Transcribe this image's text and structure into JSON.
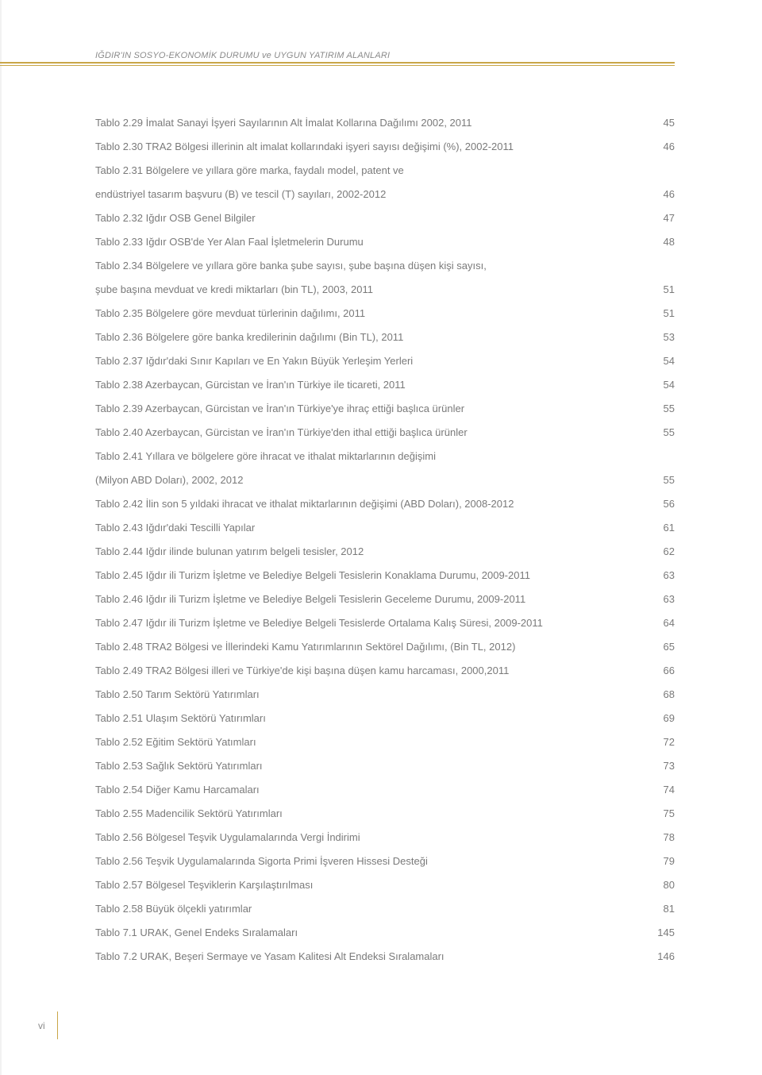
{
  "header": {
    "title": "IĞDIR'IN SOSYO-EKONOMİK DURUMU ve UYGUN YATIRIM ALANLARI"
  },
  "page_number": "vi",
  "colors": {
    "accent": "#c9a648",
    "text": "#7a7a7a",
    "header_text": "#8a8a8a",
    "background": "#ffffff"
  },
  "typography": {
    "body_fontsize": 13,
    "header_fontsize": 11,
    "line_height": 30
  },
  "toc": [
    {
      "label": "Tablo 2.29 İmalat Sanayi İşyeri Sayılarının Alt İmalat Kollarına Dağılımı 2002, 2011",
      "page": "45"
    },
    {
      "label": "Tablo 2.30 TRA2 Bölgesi illerinin alt imalat kollarındaki işyeri sayısı değişimi (%), 2002-2011",
      "page": "46"
    },
    {
      "label": "Tablo 2.31 Bölgelere ve yıllara göre marka, faydalı model, patent ve",
      "page": ""
    },
    {
      "label": "endüstriyel tasarım başvuru (B)  ve tescil (T) sayıları, 2002-2012",
      "page": "46"
    },
    {
      "label": "Tablo 2.32 Iğdır OSB Genel Bilgiler",
      "page": "47"
    },
    {
      "label": "Tablo 2.33 Iğdır OSB'de Yer Alan Faal İşletmelerin Durumu",
      "page": "48"
    },
    {
      "label": "Tablo 2.34 Bölgelere ve yıllara göre banka şube sayısı, şube başına düşen kişi sayısı,",
      "page": ""
    },
    {
      "label": "şube başına mevduat ve kredi miktarları (bin TL), 2003, 2011",
      "page": "51"
    },
    {
      "label": "Tablo 2.35 Bölgelere göre mevduat türlerinin dağılımı, 2011",
      "page": "51"
    },
    {
      "label": "Tablo 2.36 Bölgelere göre banka kredilerinin dağılımı (Bin TL), 2011",
      "page": "53"
    },
    {
      "label": "Tablo 2.37 Iğdır'daki Sınır Kapıları ve En Yakın Büyük Yerleşim Yerleri",
      "page": "54"
    },
    {
      "label": "Tablo 2.38 Azerbaycan, Gürcistan ve İran'ın Türkiye ile ticareti, 2011",
      "page": "54"
    },
    {
      "label": "Tablo 2.39 Azerbaycan, Gürcistan ve İran'ın Türkiye'ye ihraç ettiği başlıca ürünler",
      "page": "55"
    },
    {
      "label": "Tablo 2.40 Azerbaycan, Gürcistan ve İran'ın Türkiye'den ithal ettiği başlıca ürünler",
      "page": "55"
    },
    {
      "label": "Tablo 2.41 Yıllara ve bölgelere göre ihracat ve ithalat miktarlarının değişimi",
      "page": ""
    },
    {
      "label": "(Milyon ABD Doları), 2002, 2012",
      "page": "55"
    },
    {
      "label": "Tablo 2.42 İlin son 5 yıldaki ihracat ve ithalat miktarlarının değişimi (ABD Doları), 2008-2012",
      "page": "56"
    },
    {
      "label": "Tablo 2.43 Iğdır'daki Tescilli Yapılar",
      "page": "61"
    },
    {
      "label": "Tablo 2.44 Iğdır ilinde bulunan yatırım belgeli tesisler, 2012",
      "page": "62"
    },
    {
      "label": "Tablo 2.45 Iğdır ili Turizm İşletme ve Belediye Belgeli Tesislerin Konaklama Durumu, 2009-2011",
      "page": "63",
      "tight": true
    },
    {
      "label": "Tablo 2.46 Iğdır ili Turizm İşletme ve Belediye Belgeli Tesislerin Geceleme Durumu, 2009-2011",
      "page": "63"
    },
    {
      "label": "Tablo 2.47 Iğdır ili Turizm İşletme ve Belediye Belgeli Tesislerde Ortalama Kalış Süresi, 2009-2011",
      "page": "64",
      "nodots": true
    },
    {
      "label": "Tablo 2.48 TRA2 Bölgesi ve İllerindeki Kamu Yatırımlarının Sektörel Dağılımı, (Bin TL, 2012)",
      "page": "65"
    },
    {
      "label": "Tablo 2.49 TRA2 Bölgesi illeri ve Türkiye'de kişi başına düşen kamu harcaması, 2000,2011",
      "page": "66"
    },
    {
      "label": "Tablo 2.50 Tarım Sektörü Yatırımları",
      "page": "68"
    },
    {
      "label": "Tablo 2.51 Ulaşım Sektörü Yatırımları",
      "page": "69"
    },
    {
      "label": "Tablo 2.52 Eğitim Sektörü Yatımları",
      "page": "72"
    },
    {
      "label": "Tablo 2.53 Sağlık Sektörü Yatırımları",
      "page": "73"
    },
    {
      "label": "Tablo 2.54 Diğer Kamu Harcamaları",
      "page": "74"
    },
    {
      "label": "Tablo 2.55 Madencilik Sektörü Yatırımları",
      "page": "75"
    },
    {
      "label": "Tablo 2.56 Bölgesel Teşvik Uygulamalarında Vergi İndirimi",
      "page": "78"
    },
    {
      "label": "Tablo 2.56 Teşvik Uygulamalarında Sigorta Primi İşveren Hissesi Desteği",
      "page": "79"
    },
    {
      "label": "Tablo 2.57 Bölgesel Teşviklerin Karşılaştırılması",
      "page": "80"
    },
    {
      "label": "Tablo 2.58 Büyük ölçekli yatırımlar",
      "page": "81"
    },
    {
      "label": "Tablo 7.1 URAK, Genel Endeks Sıralamaları",
      "page": "145"
    },
    {
      "label": "Tablo 7.2 URAK, Beşeri Sermaye ve Yasam Kalitesi Alt Endeksi Sıralamaları",
      "page": "146"
    }
  ]
}
